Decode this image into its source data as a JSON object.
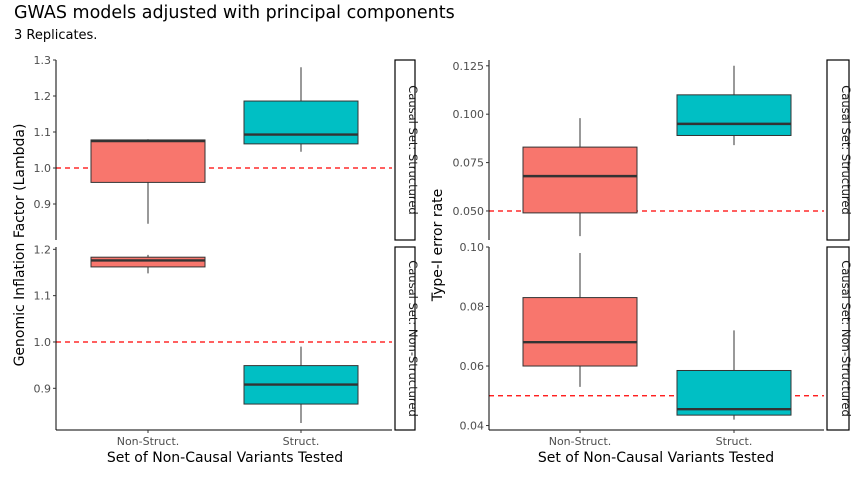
{
  "title": "GWAS models adjusted with principal components",
  "subtitle": "3 Replicates.",
  "colors": {
    "non_struct": "#F8766D",
    "struct": "#00BFC4",
    "median": "#333333",
    "reference_line": "#FF0000"
  },
  "chart_data": [
    {
      "type": "box",
      "panel": "left",
      "xlabel": "Set of Non-Causal Variants Tested",
      "ylabel": "Genomic Inflation Factor (Lambda)",
      "categories": [
        "Non-Struct.",
        "Struct."
      ],
      "facets": [
        {
          "label": "Causal Set: Structured",
          "ylim": [
            0.8,
            1.3
          ],
          "yticks": [
            0.9,
            1.0,
            1.1,
            1.2,
            1.3
          ],
          "ytick_labels": [
            "0.9",
            "1.0",
            "1.1",
            "1.2",
            "1.3"
          ],
          "reference_line": 1.0,
          "boxes": [
            {
              "category": "Non-Struct.",
              "min": 0.845,
              "q1": 0.96,
              "median": 1.075,
              "q3": 1.078,
              "max": 1.08
            },
            {
              "category": "Struct.",
              "min": 1.045,
              "q1": 1.067,
              "median": 1.093,
              "q3": 1.186,
              "max": 1.28
            }
          ]
        },
        {
          "label": "Causal Set: Non-Structured",
          "ylim": [
            0.81,
            1.205
          ],
          "yticks": [
            0.9,
            1.0,
            1.1,
            1.2
          ],
          "ytick_labels": [
            "0.9",
            "1.0",
            "1.1",
            "1.2"
          ],
          "reference_line": 1.0,
          "boxes": [
            {
              "category": "Non-Struct.",
              "min": 1.148,
              "q1": 1.162,
              "median": 1.176,
              "q3": 1.183,
              "max": 1.188
            },
            {
              "category": "Struct.",
              "min": 0.825,
              "q1": 0.866,
              "median": 0.908,
              "q3": 0.949,
              "max": 0.99
            }
          ]
        }
      ]
    },
    {
      "type": "box",
      "panel": "right",
      "xlabel": "Set of Non-Causal Variants Tested",
      "ylabel": "Type-I error rate",
      "categories": [
        "Non-Struct.",
        "Struct."
      ],
      "facets": [
        {
          "label": "Causal Set: Structured",
          "ylim": [
            0.035,
            0.128
          ],
          "yticks": [
            0.05,
            0.075,
            0.1,
            0.125
          ],
          "ytick_labels": [
            "0.050",
            "0.075",
            "0.100",
            "0.125"
          ],
          "reference_line": 0.05,
          "boxes": [
            {
              "category": "Non-Struct.",
              "min": 0.037,
              "q1": 0.049,
              "median": 0.068,
              "q3": 0.083,
              "max": 0.098
            },
            {
              "category": "Struct.",
              "min": 0.084,
              "q1": 0.089,
              "median": 0.095,
              "q3": 0.11,
              "max": 0.125
            }
          ]
        },
        {
          "label": "Causal Set: Non-Structured",
          "ylim": [
            0.0385,
            0.1
          ],
          "yticks": [
            0.04,
            0.06,
            0.08,
            0.1
          ],
          "ytick_labels": [
            "0.04",
            "0.06",
            "0.08",
            "0.10"
          ],
          "reference_line": 0.05,
          "boxes": [
            {
              "category": "Non-Struct.",
              "min": 0.053,
              "q1": 0.06,
              "median": 0.068,
              "q3": 0.083,
              "max": 0.098
            },
            {
              "category": "Struct.",
              "min": 0.042,
              "q1": 0.0435,
              "median": 0.0455,
              "q3": 0.0585,
              "max": 0.072
            }
          ]
        }
      ]
    }
  ]
}
